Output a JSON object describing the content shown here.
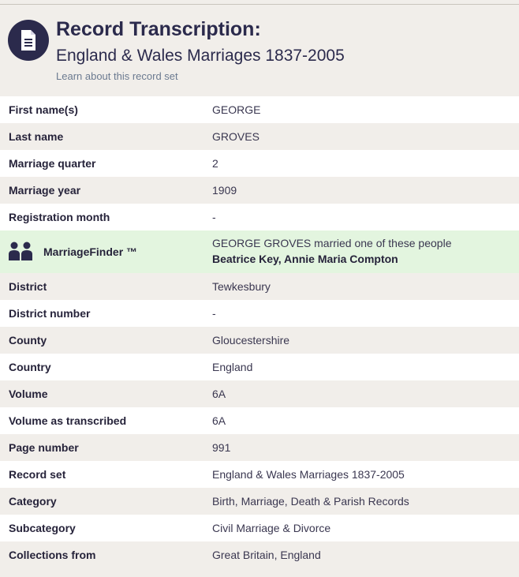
{
  "header": {
    "title": "Record Transcription:",
    "subtitle": "England & Wales Marriages 1837-2005",
    "learn_link": "Learn about this record set",
    "icon": "document-icon"
  },
  "rows_before": [
    {
      "label": "First name(s)",
      "value": "GEORGE"
    },
    {
      "label": "Last name",
      "value": "GROVES"
    },
    {
      "label": "Marriage quarter",
      "value": "2"
    },
    {
      "label": "Marriage year",
      "value": "1909"
    },
    {
      "label": "Registration month",
      "value": "-"
    }
  ],
  "marriage_finder": {
    "label": "MarriageFinder ™",
    "text": "GEORGE GROVES married one of these people",
    "names": "Beatrice Key, Annie Maria Compton",
    "icon": "couple-icon"
  },
  "rows_after": [
    {
      "label": "District",
      "value": "Tewkesbury"
    },
    {
      "label": "District number",
      "value": "-"
    },
    {
      "label": "County",
      "value": "Gloucestershire"
    },
    {
      "label": "Country",
      "value": "England"
    },
    {
      "label": "Volume",
      "value": "6A"
    },
    {
      "label": "Volume as transcribed",
      "value": "6A"
    },
    {
      "label": "Page number",
      "value": "991"
    },
    {
      "label": "Record set",
      "value": "England & Wales Marriages 1837-2005"
    },
    {
      "label": "Category",
      "value": "Birth, Marriage, Death & Parish Records"
    },
    {
      "label": "Subcategory",
      "value": "Civil Marriage & Divorce"
    },
    {
      "label": "Collections from",
      "value": "Great Britain, England"
    }
  ],
  "colors": {
    "navy": "#2b2a4c",
    "row_alt": "#f1eeea",
    "row_white": "#ffffff",
    "marriage_finder_bg": "#e3f5df"
  }
}
